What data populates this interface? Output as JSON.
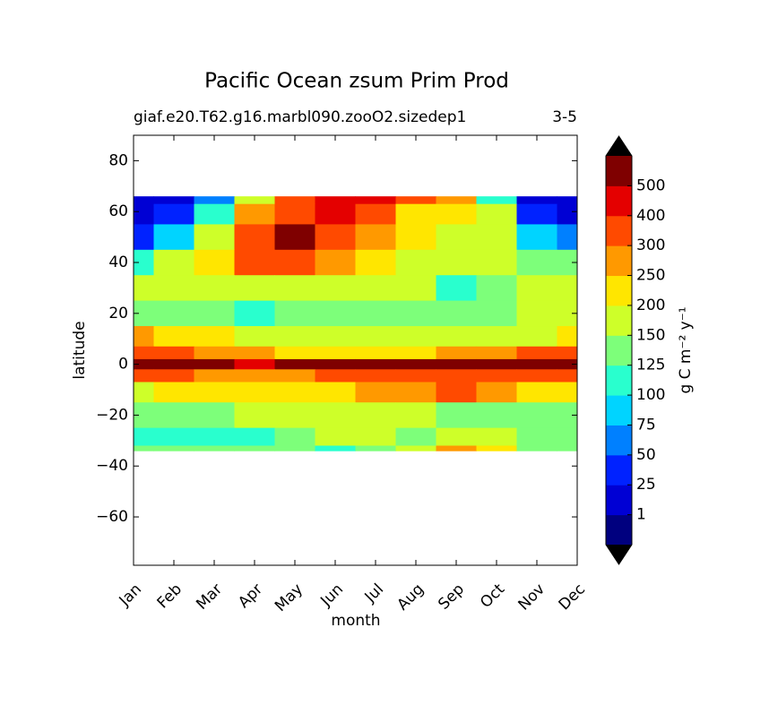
{
  "chart_data": {
    "type": "contour",
    "title": "Pacific Ocean zsum Prim Prod",
    "subtitle_left": "giaf.e20.T62.g16.marbl090.zooO2.sizedep1",
    "subtitle_right": "3-5",
    "x_label": "month",
    "y_label": "latitude",
    "categories": [
      "Jan",
      "Feb",
      "Mar",
      "Apr",
      "May",
      "Jun",
      "Jul",
      "Aug",
      "Sep",
      "Oct",
      "Nov",
      "Dec"
    ],
    "latitudes": [
      66,
      60,
      50,
      40,
      30,
      20,
      10,
      4,
      0,
      -4,
      -10,
      -20,
      -30,
      -34
    ],
    "z": [
      [
        20,
        20,
        50,
        150,
        300,
        450,
        400,
        300,
        250,
        100,
        10,
        10
      ],
      [
        20,
        40,
        100,
        260,
        350,
        420,
        320,
        230,
        200,
        150,
        40,
        20
      ],
      [
        40,
        75,
        150,
        310,
        520,
        350,
        260,
        200,
        180,
        160,
        75,
        50
      ],
      [
        120,
        170,
        200,
        300,
        300,
        260,
        210,
        170,
        160,
        170,
        140,
        130
      ],
      [
        170,
        160,
        150,
        160,
        170,
        160,
        150,
        150,
        120,
        130,
        160,
        160
      ],
      [
        140,
        140,
        130,
        110,
        130,
        140,
        140,
        140,
        140,
        140,
        150,
        150
      ],
      [
        260,
        240,
        200,
        180,
        170,
        170,
        170,
        170,
        170,
        170,
        180,
        200
      ],
      [
        320,
        300,
        280,
        250,
        230,
        220,
        210,
        220,
        260,
        280,
        300,
        320
      ],
      [
        520,
        510,
        500,
        480,
        520,
        540,
        550,
        550,
        540,
        530,
        520,
        510
      ],
      [
        350,
        330,
        280,
        250,
        280,
        320,
        330,
        330,
        340,
        320,
        300,
        300
      ],
      [
        190,
        210,
        240,
        220,
        200,
        220,
        260,
        290,
        320,
        280,
        240,
        220
      ],
      [
        140,
        140,
        140,
        160,
        180,
        170,
        170,
        150,
        140,
        130,
        130,
        130
      ],
      [
        120,
        110,
        110,
        120,
        140,
        150,
        150,
        140,
        150,
        150,
        140,
        140
      ],
      [
        140,
        140,
        140,
        140,
        140,
        120,
        140,
        160,
        280,
        200,
        140,
        140
      ]
    ],
    "ylim": [
      -79,
      90
    ],
    "yticks": [
      {
        "value": -60,
        "label": "−60"
      },
      {
        "value": -40,
        "label": "−40"
      },
      {
        "value": -20,
        "label": "−20"
      },
      0,
      20,
      40,
      60,
      80
    ],
    "levels": [
      1,
      25,
      50,
      75,
      100,
      125,
      150,
      200,
      250,
      300,
      400,
      500
    ],
    "colors": [
      "#00007f",
      "#0000d4",
      "#0022ff",
      "#0080ff",
      "#00d4ff",
      "#29ffce",
      "#7dff7a",
      "#ceff29",
      "#ffe600",
      "#ff9900",
      "#ff4a00",
      "#e40000",
      "#7f0000"
    ],
    "extend_color": "#000000",
    "colorbar_label": "g C m⁻² y⁻¹"
  }
}
